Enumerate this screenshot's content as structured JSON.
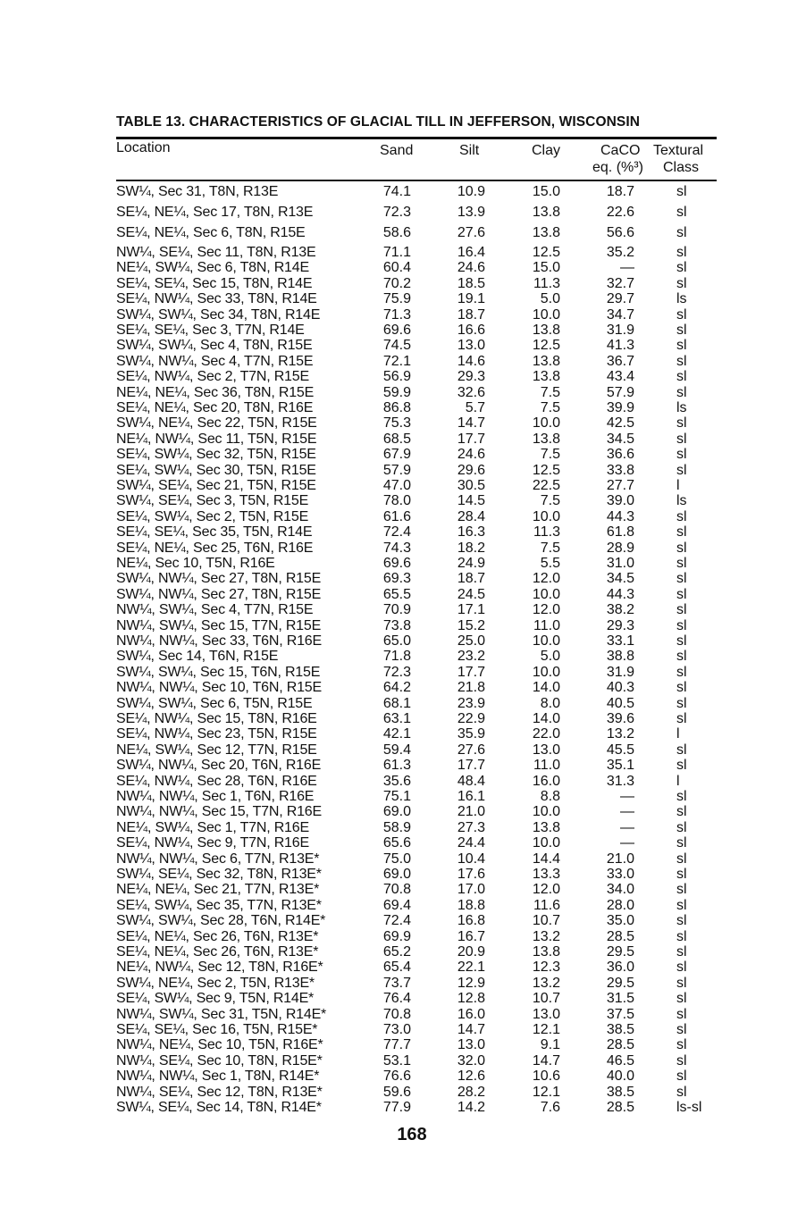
{
  "title": "TABLE 13. CHARACTERISTICS OF GLACIAL TILL IN JEFFERSON, WISCONSIN",
  "headers": {
    "location": "Location",
    "sand": "Sand",
    "silt": "Silt",
    "clay": "Clay",
    "caco_line1": "CaCO",
    "caco_line2": "eq. (%³)",
    "class_line1": "Textural",
    "class_line2": "Class"
  },
  "rows": [
    [
      "SW¼, Sec 31, T8N, R13E",
      "74.1",
      "10.9",
      "15.0",
      "18.7",
      "sl"
    ],
    [
      "SE¼, NE¼, Sec 17, T8N, R13E",
      "72.3",
      "13.9",
      "13.8",
      "22.6",
      "sl"
    ],
    [
      "SE¼, NE¼, Sec 6, T8N, R15E",
      "58.6",
      "27.6",
      "13.8",
      "56.6",
      "sl"
    ],
    [
      "NW¼, SE¼, Sec 11, T8N, R13E",
      "71.1",
      "16.4",
      "12.5",
      "35.2",
      "sl"
    ],
    [
      "NE¼, SW¼, Sec 6, T8N, R14E",
      "60.4",
      "24.6",
      "15.0",
      "—",
      "sl"
    ],
    [
      "SE¼, SE¼, Sec 15, T8N, R14E",
      "70.2",
      "18.5",
      "11.3",
      "32.7",
      "sl"
    ],
    [
      "SE¼, NW¼, Sec 33, T8N, R14E",
      "75.9",
      "19.1",
      "5.0",
      "29.7",
      "ls"
    ],
    [
      "SW¼, SW¼, Sec 34, T8N, R14E",
      "71.3",
      "18.7",
      "10.0",
      "34.7",
      "sl"
    ],
    [
      "SE¼, SE¼, Sec 3, T7N, R14E",
      "69.6",
      "16.6",
      "13.8",
      "31.9",
      "sl"
    ],
    [
      "SW¼, SW¼, Sec 4, T8N, R15E",
      "74.5",
      "13.0",
      "12.5",
      "41.3",
      "sl"
    ],
    [
      "SW¼, NW¼, Sec 4, T7N, R15E",
      "72.1",
      "14.6",
      "13.8",
      "36.7",
      "sl"
    ],
    [
      "SE¼, NW¼, Sec 2, T7N, R15E",
      "56.9",
      "29.3",
      "13.8",
      "43.4",
      "sl"
    ],
    [
      "NE¼, NE¼, Sec 36, T8N, R15E",
      "59.9",
      "32.6",
      "7.5",
      "57.9",
      "sl"
    ],
    [
      "SE¼, NE¼, Sec 20, T8N, R16E",
      "86.8",
      "5.7",
      "7.5",
      "39.9",
      "ls"
    ],
    [
      "SW¼, NE¼, Sec 22, T5N, R15E",
      "75.3",
      "14.7",
      "10.0",
      "42.5",
      "sl"
    ],
    [
      "NE¼, NW¼, Sec 11, T5N, R15E",
      "68.5",
      "17.7",
      "13.8",
      "34.5",
      "sl"
    ],
    [
      "SE¼, SW¼, Sec 32, T5N, R15E",
      "67.9",
      "24.6",
      "7.5",
      "36.6",
      "sl"
    ],
    [
      "SE¼, SW¼, Sec 30, T5N, R15E",
      "57.9",
      "29.6",
      "12.5",
      "33.8",
      "sl"
    ],
    [
      "SW¼, SE¼, Sec 21, T5N, R15E",
      "47.0",
      "30.5",
      "22.5",
      "27.7",
      "l"
    ],
    [
      "SW¼, SE¼, Sec 3, T5N, R15E",
      "78.0",
      "14.5",
      "7.5",
      "39.0",
      "ls"
    ],
    [
      "SE¼, SW¼, Sec 2, T5N, R15E",
      "61.6",
      "28.4",
      "10.0",
      "44.3",
      "sl"
    ],
    [
      "SE¼, SE¼, Sec 35, T5N, R14E",
      "72.4",
      "16.3",
      "11.3",
      "61.8",
      "sl"
    ],
    [
      "SE¼, NE¼, Sec 25, T6N, R16E",
      "74.3",
      "18.2",
      "7.5",
      "28.9",
      "sl"
    ],
    [
      "NE¼, Sec 10, T5N, R16E",
      "69.6",
      "24.9",
      "5.5",
      "31.0",
      "sl"
    ],
    [
      "SW¼, NW¼, Sec 27, T8N, R15E",
      "69.3",
      "18.7",
      "12.0",
      "34.5",
      "sl"
    ],
    [
      "SW¼, NW¼, Sec 27, T8N, R15E",
      "65.5",
      "24.5",
      "10.0",
      "44.3",
      "sl"
    ],
    [
      "NW¼, SW¼, Sec 4, T7N, R15E",
      "70.9",
      "17.1",
      "12.0",
      "38.2",
      "sl"
    ],
    [
      "NW¼, SW¼, Sec 15, T7N, R15E",
      "73.8",
      "15.2",
      "11.0",
      "29.3",
      "sl"
    ],
    [
      "NW¼, NW¼, Sec 33, T6N, R16E",
      "65.0",
      "25.0",
      "10.0",
      "33.1",
      "sl"
    ],
    [
      "SW¼, Sec 14, T6N, R15E",
      "71.8",
      "23.2",
      "5.0",
      "38.8",
      "sl"
    ],
    [
      "SW¼, SW¼, Sec 15, T6N, R15E",
      "72.3",
      "17.7",
      "10.0",
      "31.9",
      "sl"
    ],
    [
      "NW¼, NW¼, Sec 10, T6N, R15E",
      "64.2",
      "21.8",
      "14.0",
      "40.3",
      "sl"
    ],
    [
      "SW¼, SW¼, Sec 6, T5N, R15E",
      "68.1",
      "23.9",
      "8.0",
      "40.5",
      "sl"
    ],
    [
      "SE¼, NW¼, Sec 15, T8N, R16E",
      "63.1",
      "22.9",
      "14.0",
      "39.6",
      "sl"
    ],
    [
      "SE¼, NW¼, Sec 23, T5N, R15E",
      "42.1",
      "35.9",
      "22.0",
      "13.2",
      "l"
    ],
    [
      "NE¼, SW¼, Sec 12, T7N, R15E",
      "59.4",
      "27.6",
      "13.0",
      "45.5",
      "sl"
    ],
    [
      "SW¼, NW¼, Sec 20, T6N, R16E",
      "61.3",
      "17.7",
      "11.0",
      "35.1",
      "sl"
    ],
    [
      "SE¼, NW¼, Sec 28, T6N, R16E",
      "35.6",
      "48.4",
      "16.0",
      "31.3",
      "l"
    ],
    [
      "NW¼, NW¼, Sec 1, T6N, R16E",
      "75.1",
      "16.1",
      "8.8",
      "—",
      "sl"
    ],
    [
      "NW¼, NW¼, Sec 15, T7N, R16E",
      "69.0",
      "21.0",
      "10.0",
      "—",
      "sl"
    ],
    [
      "NE¼, SW¼, Sec 1, T7N, R16E",
      "58.9",
      "27.3",
      "13.8",
      "—",
      "sl"
    ],
    [
      "SE¼, NW¼, Sec 9, T7N, R16E",
      "65.6",
      "24.4",
      "10.0",
      "—",
      "sl"
    ],
    [
      "NW¼, NW¼, Sec 6, T7N, R13E*",
      "75.0",
      "10.4",
      "14.4",
      "21.0",
      "sl"
    ],
    [
      "SW¼, SE¼, Sec 32, T8N, R13E*",
      "69.0",
      "17.6",
      "13.3",
      "33.0",
      "sl"
    ],
    [
      "NE¼, NE¼, Sec 21, T7N, R13E*",
      "70.8",
      "17.0",
      "12.0",
      "34.0",
      "sl"
    ],
    [
      "SE¼, SW¼, Sec 35, T7N, R13E*",
      "69.4",
      "18.8",
      "11.6",
      "28.0",
      "sl"
    ],
    [
      "SW¼, SW¼, Sec 28, T6N, R14E*",
      "72.4",
      "16.8",
      "10.7",
      "35.0",
      "sl"
    ],
    [
      "SE¼, NE¼, Sec 26, T6N, R13E*",
      "69.9",
      "16.7",
      "13.2",
      "28.5",
      "sl"
    ],
    [
      "SE¼, NE¼, Sec 26, T6N, R13E*",
      "65.2",
      "20.9",
      "13.8",
      "29.5",
      "sl"
    ],
    [
      "NE¼, NW¼, Sec 12, T8N, R16E*",
      "65.4",
      "22.1",
      "12.3",
      "36.0",
      "sl"
    ],
    [
      "SW¼, NE¼, Sec 2, T5N, R13E*",
      "73.7",
      "12.9",
      "13.2",
      "29.5",
      "sl"
    ],
    [
      "SE¼, SW¼, Sec 9, T5N, R14E*",
      "76.4",
      "12.8",
      "10.7",
      "31.5",
      "sl"
    ],
    [
      "NW¼, SW¼, Sec 31, T5N, R14E*",
      "70.8",
      "16.0",
      "13.0",
      "37.5",
      "sl"
    ],
    [
      "SE¼, SE¼, Sec 16, T5N, R15E*",
      "73.0",
      "14.7",
      "12.1",
      "38.5",
      "sl"
    ],
    [
      "NW¼, NE¼, Sec 10, T5N, R16E*",
      "77.7",
      "13.0",
      "9.1",
      "28.5",
      "sl"
    ],
    [
      "NW¼, SE¼, Sec 10, T8N, R15E*",
      "53.1",
      "32.0",
      "14.7",
      "46.5",
      "sl"
    ],
    [
      "NW¼, NW¼, Sec 1, T8N, R14E*",
      "76.6",
      "12.6",
      "10.6",
      "40.0",
      "sl"
    ],
    [
      "NW¼, SE¼, Sec 12, T8N, R13E*",
      "59.6",
      "28.2",
      "12.1",
      "38.5",
      "sl"
    ],
    [
      "SW¼, SE¼, Sec 14, T8N, R14E*",
      "77.9",
      "14.2",
      "7.6",
      "28.5",
      "ls-sl"
    ]
  ],
  "page_number": "168"
}
